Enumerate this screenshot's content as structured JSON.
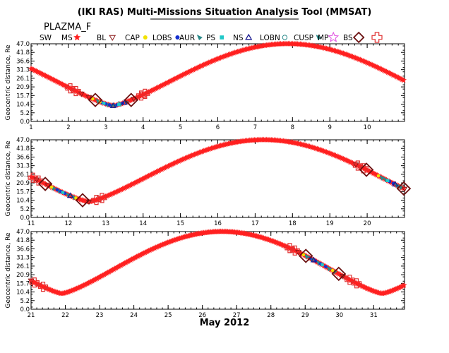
{
  "header": {
    "title": "(IKI RAS) Multi-Missions Situation Analysis Tool (MMSAT)",
    "mission": "PLAZMA_F"
  },
  "legend": [
    {
      "label": "SW",
      "symbol": "none",
      "color": "#000000"
    },
    {
      "label": "MS",
      "symbol": "star",
      "color": "#ff2020"
    },
    {
      "label": "BL",
      "symbol": "triangle-down",
      "color": "#8b1a1a"
    },
    {
      "label": "CAP",
      "symbol": "circle",
      "color": "#f2e200"
    },
    {
      "label": "LOBS",
      "symbol": "circle",
      "color": "#1530d0"
    },
    {
      "label": "AUR",
      "symbol": "wedge",
      "color": "#2a8a8a"
    },
    {
      "label": "PS",
      "symbol": "square",
      "color": "#20c8c8"
    },
    {
      "label": "NS",
      "symbol": "triangle-up",
      "color": "#1a1a90"
    },
    {
      "label": "LOBN",
      "symbol": "circle-open",
      "color": "#2a8a8a"
    },
    {
      "label": "CUSP",
      "symbol": "wedge",
      "color": "#2a8a8a"
    },
    {
      "label": "MP",
      "symbol": "star-open",
      "color": "#e050e0"
    },
    {
      "label": "BS",
      "symbol": "diamond-open",
      "color": "#6a1010"
    },
    {
      "label": "",
      "symbol": "cross-open",
      "color": "#e03030"
    }
  ],
  "chart_data": {
    "type": "scatter",
    "xtitle": "May 2012",
    "ylabel": "Geocentric distance, Re",
    "yticks": [
      "0.0",
      "5.2",
      "10.4",
      "15.7",
      "20.9",
      "26.1",
      "31.3",
      "36.6",
      "41.8",
      "47.0"
    ],
    "ylim": [
      0,
      47
    ],
    "orbit": {
      "perigee_re": 9.5,
      "apogee_re": 47.0,
      "period_days": 9.35,
      "perigee_day": 3.2
    },
    "panels": [
      {
        "xlim": [
          1,
          11
        ],
        "xticks": [
          "1",
          "2",
          "3",
          "4",
          "5",
          "6",
          "7",
          "8",
          "9",
          "10"
        ]
      },
      {
        "xlim": [
          11,
          21
        ],
        "xticks": [
          "11",
          "12",
          "13",
          "14",
          "15",
          "16",
          "17",
          "18",
          "19",
          "20"
        ]
      },
      {
        "xlim": [
          21,
          31.9
        ],
        "xticks": [
          "21",
          "22",
          "23",
          "24",
          "25",
          "26",
          "27",
          "28",
          "29",
          "30",
          "31"
        ]
      }
    ],
    "regions": {
      "SW": {
        "color": "#ff2020",
        "symbol": "star"
      },
      "BS": {
        "color": "#6a1010",
        "symbol": "diamond-open",
        "days": [
          2.72,
          3.68,
          11.38,
          12.38,
          19.98,
          20.98,
          29.02,
          29.98
        ]
      },
      "BS_cross": {
        "color": "#e03030",
        "symbol": "cross-open",
        "days": [
          2.05,
          2.2,
          3.95,
          4.05,
          11.05,
          11.2,
          12.75,
          12.9,
          19.75,
          19.9,
          21.1,
          21.35,
          28.55,
          28.7,
          30.3,
          30.5
        ]
      },
      "MS": {
        "color": "#8b1a1a",
        "symbol": "triangle-down",
        "days": [
          2.35,
          2.55,
          3.75,
          11.15,
          11.45,
          12.55,
          19.7,
          21.0,
          28.8,
          30.1
        ]
      },
      "CAP": {
        "color": "#f2e200",
        "symbol": "circle",
        "days": [
          2.65,
          2.85,
          11.55,
          12.2,
          20.3,
          28.95,
          29.8
        ]
      },
      "LOBS": {
        "color": "#1530d0",
        "symbol": "circle",
        "days": [
          2.9,
          3.0,
          3.1,
          3.3,
          3.45,
          11.7,
          11.8,
          11.9,
          20.6,
          20.7,
          29.15,
          29.3,
          29.45,
          29.6
        ]
      },
      "AUR": {
        "color": "#2a8a8a",
        "symbol": "wedge",
        "days": [
          2.8,
          3.05,
          3.15,
          3.25,
          3.4,
          3.55,
          11.6,
          11.75,
          12.0,
          12.15,
          20.4,
          20.5,
          20.8,
          20.9,
          29.05,
          29.2,
          29.4,
          29.7,
          29.85
        ]
      },
      "PS": {
        "color": "#20c8c8",
        "symbol": "square",
        "days": [
          2.95,
          3.35,
          11.85,
          20.55,
          29.5
        ]
      },
      "NS": {
        "color": "#1a1a90",
        "symbol": "triangle-up",
        "days": [
          3.2,
          3.5,
          12.05,
          20.75,
          29.25
        ]
      }
    }
  }
}
